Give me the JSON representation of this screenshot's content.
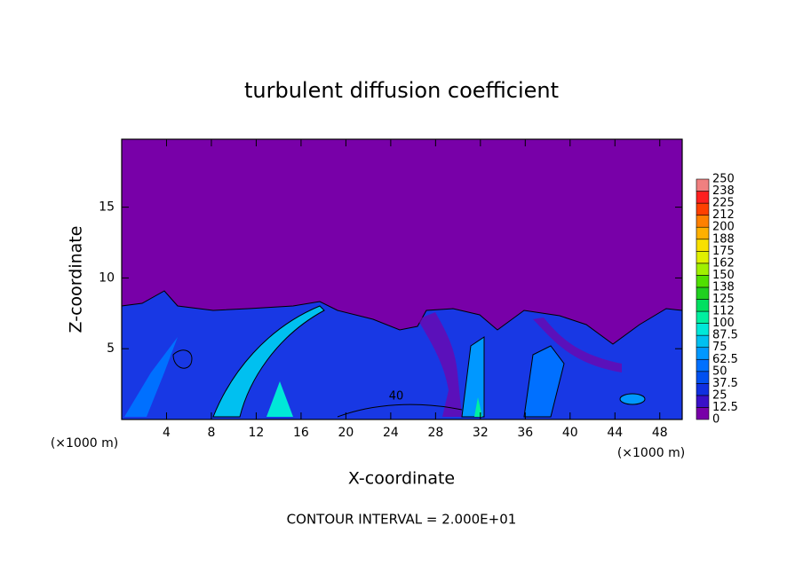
{
  "chart_data": {
    "type": "contour",
    "title": "turbulent diffusion coefficient",
    "x_label": "X-coordinate",
    "y_label": "Z-coordinate",
    "x_unit": "(×1000 m)",
    "y_unit": "(×1000 m)",
    "note": "CONTOUR INTERVAL = 2.000E+01",
    "xlim": [
      0,
      50
    ],
    "xticks": [
      4,
      8,
      12,
      16,
      20,
      24,
      28,
      32,
      36,
      40,
      44,
      48
    ],
    "ylim": [
      0,
      19.8
    ],
    "yticks": [
      5,
      10,
      15
    ],
    "contour_labels": [
      40
    ],
    "colorbar_levels": [
      0,
      12.5,
      25,
      37.5,
      50,
      62.5,
      75,
      87.5,
      100,
      112,
      125,
      138,
      150,
      162,
      175,
      188,
      200,
      212,
      225,
      238,
      250
    ],
    "colorbar_colors": [
      "#7800a8",
      "#3a10c8",
      "#1030e0",
      "#0050f0",
      "#0070ff",
      "#0098ff",
      "#00c0f0",
      "#00e8d8",
      "#00f0a0",
      "#00e060",
      "#20d020",
      "#50e000",
      "#a0f000",
      "#e0f000",
      "#f8e000",
      "#ffb000",
      "#ff8000",
      "#ff4000",
      "#ff2020",
      "#f08080"
    ]
  }
}
